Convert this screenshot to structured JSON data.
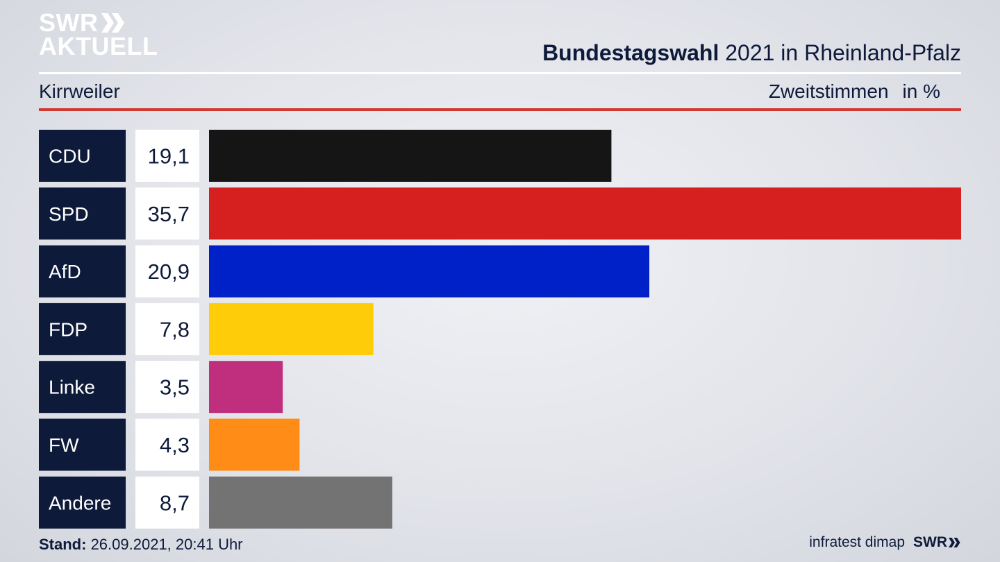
{
  "header": {
    "logo_line1": "SWR",
    "logo_line2": "AKTUELL",
    "title_bold": "Bundestagswahl",
    "title_rest": " 2021 in Rheinland-Pfalz",
    "region": "Kirrweiler",
    "measure": "Zweitstimmen",
    "unit": "in %"
  },
  "footer": {
    "stand_label": "Stand:",
    "stand_value": " 26.09.2021, 20:41 Uhr",
    "source": "infratest dimap",
    "brand": "SWR"
  },
  "colors": {
    "label_bg": "#0e1a3a",
    "text": "#0e1a3a",
    "accent_red": "#cf3a32"
  },
  "chart_data": {
    "type": "bar",
    "orientation": "horizontal",
    "categories": [
      "CDU",
      "SPD",
      "AfD",
      "FDP",
      "Linke",
      "FW",
      "Andere"
    ],
    "values": [
      19.1,
      35.7,
      20.9,
      7.8,
      3.5,
      4.3,
      8.7
    ],
    "value_labels": [
      "19,1",
      "35,7",
      "20,9",
      "7,8",
      "3,5",
      "4,3",
      "8,7"
    ],
    "colors": [
      "#151515",
      "#d61f1f",
      "#0020c8",
      "#ffcc0a",
      "#bf2f7d",
      "#ff8c17",
      "#737373"
    ],
    "xlim": [
      0,
      35.7
    ]
  }
}
